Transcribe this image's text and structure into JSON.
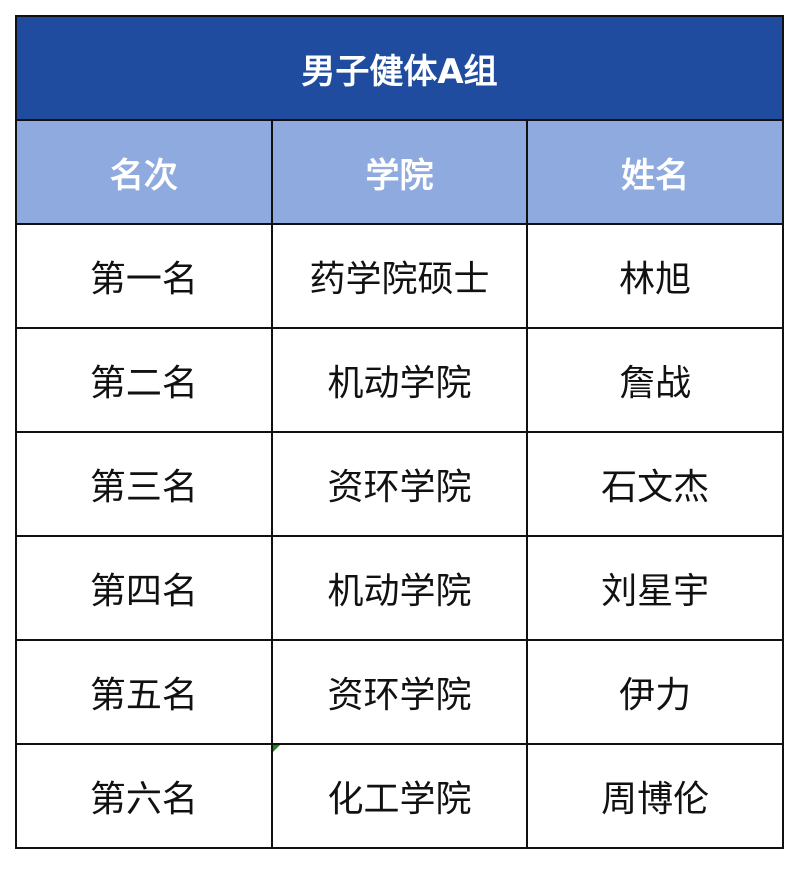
{
  "title": "男子健体A组",
  "columns": [
    "名次",
    "学院",
    "姓名"
  ],
  "rows": [
    [
      "第一名",
      "药学院硕士",
      "林旭"
    ],
    [
      "第二名",
      "机动学院",
      "詹战"
    ],
    [
      "第三名",
      "资环学院",
      "石文杰"
    ],
    [
      "第四名",
      "机动学院",
      "刘星宇"
    ],
    [
      "第五名",
      "资环学院",
      "伊力"
    ],
    [
      "第六名",
      "化工学院",
      "周博伦"
    ]
  ],
  "colors": {
    "title_bg": "#1f4c9f",
    "header_bg": "#8eaadf",
    "indicator": "#1a8a1a"
  }
}
